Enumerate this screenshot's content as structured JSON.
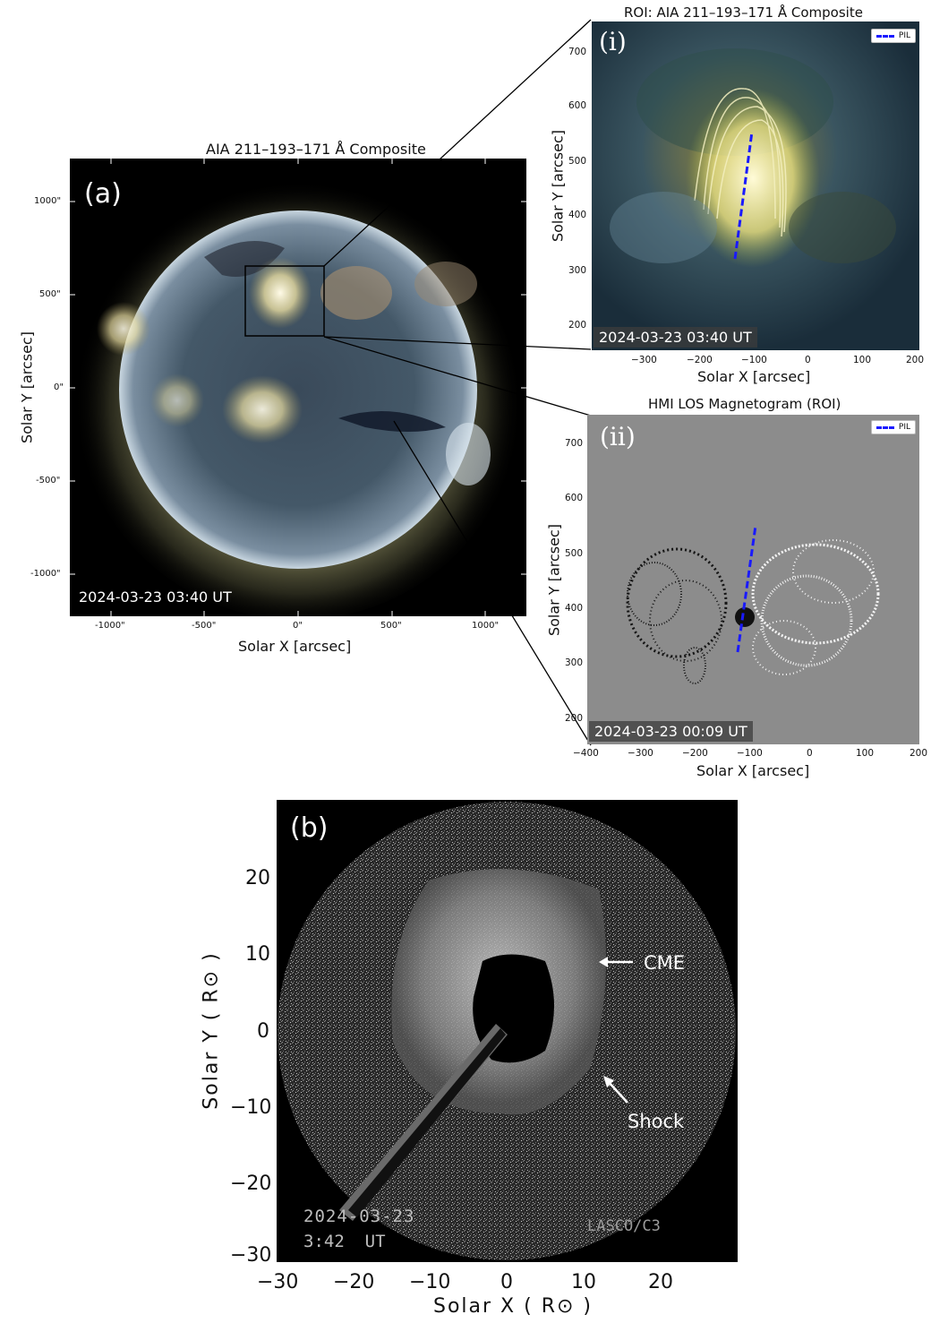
{
  "panel_a": {
    "title": "AIA 211–193–171 Å Composite",
    "tag": "(a)",
    "timestamp": "2024-03-23  03:40 UT",
    "xlabel": "Solar X [arcsec]",
    "ylabel": "Solar Y [arcsec]",
    "xticks": [
      "-1000\"",
      "-500\"",
      "0\"",
      "500\"",
      "1000\""
    ],
    "yticks": [
      "1000\"",
      "500\"",
      "0\"",
      "-500\"",
      "-1000\""
    ]
  },
  "panel_i": {
    "title": "ROI: AIA 211–193–171 Å Composite",
    "tag": "(i)",
    "timestamp": "2024-03-23  03:40 UT",
    "legend": "PIL",
    "xlabel": "Solar X [arcsec]",
    "ylabel": "Solar Y [arcsec]",
    "xticks": [
      "−300",
      "−200",
      "−100",
      "0",
      "100",
      "200"
    ],
    "yticks": [
      "700",
      "600",
      "500",
      "400",
      "300",
      "200"
    ]
  },
  "panel_ii": {
    "title": "HMI LOS Magnetogram (ROI)",
    "tag": "(ii)",
    "timestamp": "2024-03-23  00:09 UT",
    "legend": "PIL",
    "xlabel": "Solar X [arcsec]",
    "ylabel": "Solar Y [arcsec]",
    "xticks": [
      "−400",
      "−300",
      "−200",
      "−100",
      "0",
      "100",
      "200"
    ],
    "yticks": [
      "700",
      "600",
      "500",
      "400",
      "300",
      "200"
    ]
  },
  "panel_b": {
    "tag": "(b)",
    "date": "2024-03-23",
    "time": "3:42  UT",
    "instrument": "LASCO/C3",
    "cme_label": "CME",
    "shock_label": "Shock",
    "xlabel": "Solar X ( R⊙ )",
    "ylabel": "Solar Y ( R⊙ )",
    "xticks": [
      "−30",
      "−20",
      "−10",
      "0",
      "10",
      "20"
    ],
    "yticks": [
      "20",
      "10",
      "0",
      "−10",
      "−20",
      "−30"
    ]
  }
}
